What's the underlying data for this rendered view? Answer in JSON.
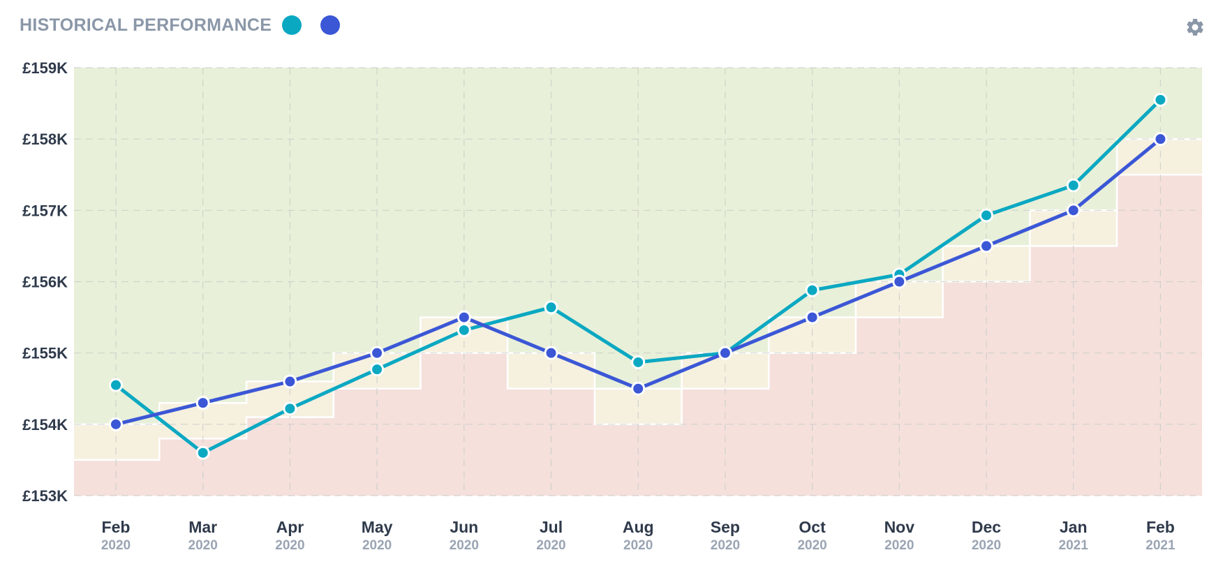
{
  "header": {
    "title": "HISTORICAL PERFORMANCE",
    "legend": [
      {
        "color": "#0ba8c2",
        "icon": "series-1-dot"
      },
      {
        "color": "#3b57d6",
        "icon": "series-2-dot"
      }
    ],
    "settings_icon": "gear-icon"
  },
  "chart_data": {
    "type": "line",
    "title": "HISTORICAL PERFORMANCE",
    "xlabel": "",
    "ylabel": "",
    "ylim": [
      153000,
      159000
    ],
    "y_ticks": [
      153000,
      154000,
      155000,
      156000,
      157000,
      158000,
      159000
    ],
    "y_tick_labels": [
      "£153K",
      "£154K",
      "£155K",
      "£156K",
      "£157K",
      "£158K",
      "£159K"
    ],
    "categories": [
      {
        "month": "Feb",
        "year": "2020"
      },
      {
        "month": "Mar",
        "year": "2020"
      },
      {
        "month": "Apr",
        "year": "2020"
      },
      {
        "month": "May",
        "year": "2020"
      },
      {
        "month": "Jun",
        "year": "2020"
      },
      {
        "month": "Jul",
        "year": "2020"
      },
      {
        "month": "Aug",
        "year": "2020"
      },
      {
        "month": "Sep",
        "year": "2020"
      },
      {
        "month": "Oct",
        "year": "2020"
      },
      {
        "month": "Nov",
        "year": "2020"
      },
      {
        "month": "Dec",
        "year": "2020"
      },
      {
        "month": "Jan",
        "year": "2021"
      },
      {
        "month": "Feb",
        "year": "2021"
      }
    ],
    "series": [
      {
        "color": "#0ba8c2",
        "values": [
          154550,
          153600,
          154220,
          154770,
          155320,
          155640,
          154870,
          155000,
          155880,
          156100,
          156930,
          157350,
          158550
        ]
      },
      {
        "color": "#3b57d6",
        "values": [
          154000,
          154300,
          154600,
          155000,
          155500,
          155000,
          154500,
          155000,
          155500,
          156000,
          156500,
          157000,
          158000
        ]
      }
    ],
    "bands": {
      "colors": {
        "top": "#e8f0d9",
        "middle": "#f6f0df",
        "bottom": "#f5e0dc"
      },
      "lower": [
        153500,
        153800,
        154100,
        154500,
        155000,
        154500,
        154000,
        154500,
        155000,
        155500,
        156000,
        156500,
        157500
      ],
      "upper": [
        154000,
        154300,
        154600,
        155000,
        155500,
        155000,
        154500,
        155000,
        155500,
        156000,
        156500,
        157000,
        158000
      ]
    },
    "grid": true,
    "legend_position": "top-left"
  }
}
